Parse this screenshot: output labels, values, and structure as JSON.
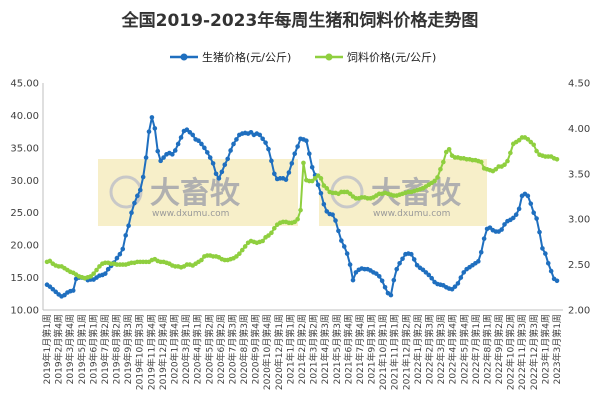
{
  "chart_data": {
    "type": "line",
    "title": "全国2019-2023年每周生猪和饲料价格走势图",
    "legend_position": "top",
    "grid": false,
    "watermark": {
      "brand": "大畜牧",
      "url": "www.dxumu.com"
    },
    "colors": {
      "hog": "#1f6fbf",
      "feed": "#8fcf3f",
      "watermark_bg": "#f7efc9"
    },
    "y_left": {
      "min": 10,
      "max": 45,
      "step": 5,
      "ticks": [
        "10.00",
        "15.00",
        "20.00",
        "25.00",
        "30.00",
        "35.00",
        "40.00",
        "45.00"
      ]
    },
    "y_right": {
      "min": 2.0,
      "max": 4.5,
      "step": 0.5,
      "ticks": [
        "2.00",
        "2.50",
        "3.00",
        "3.50",
        "4.00",
        "4.50"
      ]
    },
    "x_ticks": [
      "2019年1月第1周",
      "2019年2月第4周",
      "2019年3月第4周",
      "2019年5月第1周",
      "2019年6月第1周",
      "2019年7月第2周",
      "2019年8月第2周",
      "2019年9月第3周",
      "2019年10月第3周",
      "2019年11月第4周",
      "2019年12月第4周",
      "2020年1月第4周",
      "2020年3月第1周",
      "2020年4月第1周",
      "2020年5月第2周",
      "2020年6月第2周",
      "2020年7月第3周",
      "2020年8月第3周",
      "2020年9月第4周",
      "2020年10月第4周",
      "2020年12月第1周",
      "2021年1月第1周",
      "2021年2月第2周",
      "2021年3月第2周",
      "2021年4月第3周",
      "2021年5月第3周",
      "2021年6月第4周",
      "2021年7月第4周",
      "2021年9月第1周",
      "2021年10月第1周",
      "2021年11月第1周",
      "2021年12月第2周",
      "2022年1月第2周",
      "2022年2月第3周",
      "2022年3月第3周",
      "2022年4月第4周",
      "2022年5月第4周",
      "2022年7月第1周",
      "2022年8月第1周",
      "2022年9月第2周",
      "2022年10月第2周",
      "2022年11月第3周",
      "2022年12月第3周",
      "2023年1月第4周",
      "2023年3月第1周"
    ],
    "series": [
      {
        "name": "生猪价格(元/公斤)",
        "axis": "left",
        "color": "#1f6fbf",
        "values": [
          13.9,
          13.6,
          13.2,
          12.8,
          12.4,
          12.1,
          12.3,
          12.7,
          12.9,
          13.0,
          14.8,
          15.0,
          15.0,
          14.9,
          14.6,
          14.7,
          14.7,
          15.0,
          15.3,
          15.4,
          15.6,
          16.3,
          16.8,
          17.3,
          18.0,
          18.6,
          19.4,
          21.5,
          23.0,
          25.0,
          26.5,
          27.6,
          28.5,
          30.5,
          33.5,
          37.5,
          39.7,
          38.0,
          34.5,
          33.0,
          33.5,
          34.0,
          34.2,
          34.0,
          34.6,
          35.6,
          36.6,
          37.6,
          37.8,
          37.4,
          37.0,
          36.3,
          36.1,
          35.6,
          35.0,
          34.3,
          33.5,
          32.6,
          31.0,
          30.3,
          31.3,
          32.4,
          33.3,
          34.6,
          35.6,
          36.3,
          37.0,
          37.2,
          37.3,
          37.2,
          37.4,
          37.0,
          37.2,
          37.0,
          36.4,
          35.8,
          34.8,
          33.0,
          31.0,
          30.2,
          30.3,
          30.3,
          30.1,
          31.2,
          32.6,
          34.1,
          35.2,
          36.4,
          36.3,
          36.1,
          34.1,
          32.0,
          30.8,
          29.3,
          28.0,
          26.3,
          25.2,
          24.8,
          24.7,
          23.8,
          22.2,
          20.7,
          19.8,
          18.7,
          17.0,
          14.6,
          15.8,
          16.2,
          16.4,
          16.3,
          16.3,
          16.1,
          15.8,
          15.6,
          15.2,
          14.5,
          13.5,
          12.6,
          12.3,
          14.6,
          16.3,
          17.2,
          17.9,
          18.6,
          18.7,
          18.6,
          17.8,
          16.9,
          16.5,
          16.2,
          15.8,
          15.4,
          14.9,
          14.3,
          14.0,
          13.9,
          13.8,
          13.5,
          13.3,
          13.2,
          13.6,
          14.1,
          15.0,
          15.8,
          16.3,
          16.6,
          16.9,
          17.2,
          17.5,
          18.9,
          21.0,
          22.5,
          22.7,
          22.3,
          22.1,
          22.1,
          22.4,
          23.2,
          23.7,
          23.9,
          24.2,
          24.7,
          25.6,
          27.6,
          27.9,
          27.6,
          26.4,
          25.0,
          24.1,
          22.0,
          19.5,
          18.7,
          17.2,
          16.0,
          14.8,
          14.5
        ]
      },
      {
        "name": "饲料价格(元/公斤)",
        "axis": "right",
        "color": "#8fcf3f",
        "values": [
          2.53,
          2.54,
          2.51,
          2.49,
          2.48,
          2.48,
          2.46,
          2.44,
          2.42,
          2.41,
          2.39,
          2.37,
          2.36,
          2.35,
          2.36,
          2.37,
          2.4,
          2.44,
          2.48,
          2.51,
          2.52,
          2.52,
          2.51,
          2.51,
          2.5,
          2.5,
          2.5,
          2.5,
          2.51,
          2.52,
          2.52,
          2.53,
          2.53,
          2.53,
          2.53,
          2.53,
          2.55,
          2.56,
          2.54,
          2.53,
          2.53,
          2.52,
          2.51,
          2.49,
          2.48,
          2.48,
          2.47,
          2.48,
          2.5,
          2.5,
          2.49,
          2.51,
          2.53,
          2.55,
          2.59,
          2.6,
          2.6,
          2.59,
          2.59,
          2.58,
          2.56,
          2.55,
          2.55,
          2.56,
          2.57,
          2.59,
          2.62,
          2.66,
          2.7,
          2.74,
          2.76,
          2.75,
          2.74,
          2.75,
          2.76,
          2.8,
          2.82,
          2.85,
          2.9,
          2.94,
          2.96,
          2.97,
          2.97,
          2.96,
          2.96,
          2.97,
          3.0,
          3.1,
          3.62,
          3.43,
          3.42,
          3.42,
          3.45,
          3.48,
          3.45,
          3.37,
          3.34,
          3.3,
          3.29,
          3.29,
          3.28,
          3.3,
          3.3,
          3.3,
          3.28,
          3.25,
          3.23,
          3.23,
          3.24,
          3.24,
          3.23,
          3.23,
          3.24,
          3.26,
          3.28,
          3.28,
          3.29,
          3.28,
          3.27,
          3.26,
          3.26,
          3.27,
          3.28,
          3.29,
          3.3,
          3.3,
          3.31,
          3.32,
          3.33,
          3.34,
          3.36,
          3.38,
          3.4,
          3.42,
          3.46,
          3.55,
          3.63,
          3.74,
          3.77,
          3.7,
          3.68,
          3.68,
          3.67,
          3.67,
          3.66,
          3.66,
          3.65,
          3.65,
          3.64,
          3.63,
          3.56,
          3.55,
          3.54,
          3.53,
          3.55,
          3.58,
          3.58,
          3.6,
          3.64,
          3.73,
          3.83,
          3.85,
          3.87,
          3.9,
          3.9,
          3.88,
          3.85,
          3.82,
          3.75,
          3.71,
          3.7,
          3.69,
          3.69,
          3.69,
          3.67,
          3.66
        ]
      }
    ]
  }
}
